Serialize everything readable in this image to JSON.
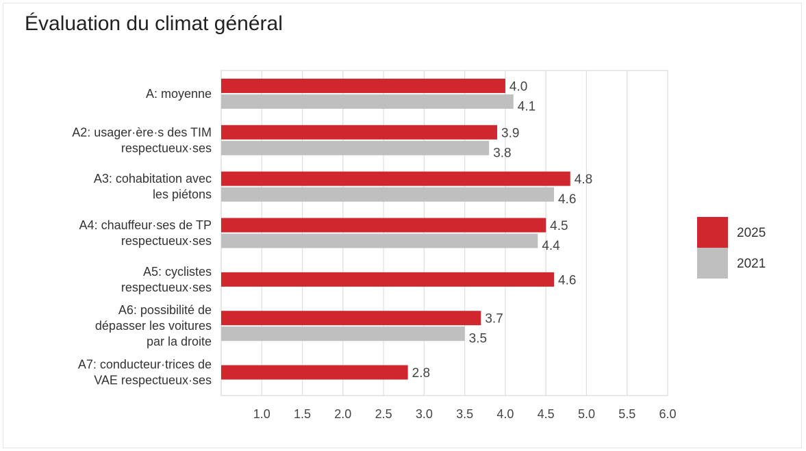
{
  "chart_data": {
    "type": "bar",
    "orientation": "horizontal",
    "title": "Évaluation du climat général",
    "xlim": [
      0.5,
      6.0
    ],
    "xticks": [
      "1.0",
      "1.5",
      "2.0",
      "2.5",
      "3.0",
      "3.5",
      "4.0",
      "4.5",
      "5.0",
      "5.5",
      "6.0"
    ],
    "grid": true,
    "legend_position": "right",
    "categories": [
      [
        "A: moyenne"
      ],
      [
        "A2: usager·ère·s des TIM",
        "respectueux·ses"
      ],
      [
        "A3: cohabitation avec",
        "les piétons"
      ],
      [
        "A4: chauffeur·ses de TP",
        "respectueux·ses"
      ],
      [
        "A5: cyclistes",
        "respectueux·ses"
      ],
      [
        "A6: possibilité de",
        "dépasser les voitures",
        "par la droite"
      ],
      [
        "A7: conducteur·trices de",
        "VAE respectueux·ses"
      ]
    ],
    "series": [
      {
        "name": "2025",
        "color": "#d0272e",
        "values": [
          4.0,
          3.9,
          4.8,
          4.5,
          4.6,
          3.7,
          2.8
        ],
        "labels": [
          "4.0",
          "3.9",
          "4.8",
          "4.5",
          "4.6",
          "3.7",
          "2.8"
        ]
      },
      {
        "name": "2021",
        "color": "#bfbfbf",
        "values": [
          4.1,
          3.8,
          4.6,
          4.4,
          null,
          3.5,
          null
        ],
        "labels": [
          "4.1",
          "3.8",
          "4.6",
          "4.4",
          null,
          "3.5",
          null
        ]
      }
    ]
  }
}
